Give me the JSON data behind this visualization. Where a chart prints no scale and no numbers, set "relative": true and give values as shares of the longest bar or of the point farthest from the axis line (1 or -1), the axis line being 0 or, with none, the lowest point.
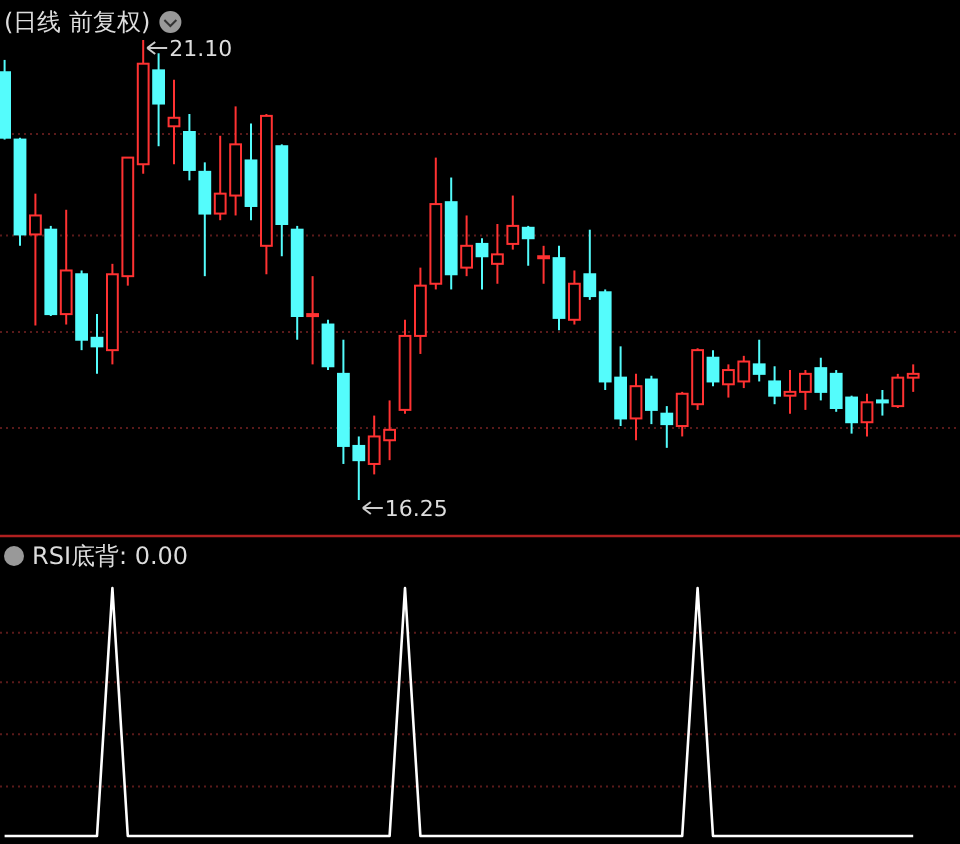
{
  "chart_data": [
    {
      "type": "candlestick",
      "title": "(日线 前复权)",
      "categories": [
        null,
        null,
        null,
        null,
        null,
        null,
        null,
        null,
        null,
        null,
        null,
        null,
        null,
        null,
        null,
        null,
        null,
        null,
        null,
        null,
        null,
        null,
        null,
        null,
        null,
        null,
        null,
        null,
        null,
        null,
        null,
        null,
        null,
        null,
        null,
        null,
        null,
        null,
        null,
        null,
        null,
        null,
        null,
        null,
        null,
        null,
        null,
        null,
        null,
        null,
        null,
        null,
        null,
        null,
        null,
        null,
        null,
        null,
        null,
        null
      ],
      "ohlc": [
        [
          20.76,
          20.89,
          20.05,
          20.07
        ],
        [
          20.05,
          20.07,
          18.93,
          19.05
        ],
        [
          19.05,
          19.48,
          18.09,
          19.25
        ],
        [
          19.1,
          19.14,
          18.19,
          18.21
        ],
        [
          18.21,
          19.31,
          18.1,
          18.67
        ],
        [
          18.63,
          18.67,
          17.83,
          17.94
        ],
        [
          17.96,
          18.21,
          17.58,
          17.87
        ],
        [
          17.83,
          18.74,
          17.68,
          18.63
        ],
        [
          18.61,
          19.86,
          18.51,
          19.86
        ],
        [
          19.79,
          21.1,
          19.69,
          20.85
        ],
        [
          20.78,
          20.96,
          19.98,
          20.43
        ],
        [
          20.19,
          20.68,
          19.79,
          20.28
        ],
        [
          20.13,
          20.32,
          19.62,
          19.73
        ],
        [
          19.71,
          19.81,
          18.61,
          19.27
        ],
        [
          19.27,
          20.09,
          19.2,
          19.48
        ],
        [
          19.46,
          20.4,
          19.25,
          20.0
        ],
        [
          19.83,
          20.22,
          19.2,
          19.35
        ],
        [
          18.93,
          20.32,
          18.63,
          20.3
        ],
        [
          19.98,
          20.0,
          18.82,
          19.16
        ],
        [
          19.1,
          19.14,
          17.94,
          18.19
        ],
        [
          18.19,
          18.61,
          17.68,
          18.21
        ],
        [
          18.1,
          18.15,
          17.62,
          17.66
        ],
        [
          17.58,
          17.94,
          16.63,
          16.82
        ],
        [
          16.82,
          16.92,
          16.25,
          16.67
        ],
        [
          16.63,
          17.14,
          16.52,
          16.92
        ],
        [
          16.88,
          17.3,
          16.67,
          16.99
        ],
        [
          17.2,
          18.15,
          17.16,
          17.98
        ],
        [
          17.98,
          18.7,
          17.79,
          18.51
        ],
        [
          18.53,
          19.86,
          18.47,
          19.37
        ],
        [
          19.39,
          19.65,
          18.47,
          18.63
        ],
        [
          18.7,
          19.25,
          18.61,
          18.93
        ],
        [
          18.95,
          19.01,
          18.47,
          18.82
        ],
        [
          18.74,
          19.16,
          18.53,
          18.84
        ],
        [
          18.95,
          19.46,
          18.89,
          19.14
        ],
        [
          19.12,
          19.14,
          18.72,
          19.01
        ],
        [
          18.8,
          18.93,
          18.53,
          18.82
        ],
        [
          18.8,
          18.93,
          18.04,
          18.17
        ],
        [
          18.15,
          18.67,
          18.1,
          18.53
        ],
        [
          18.63,
          19.1,
          18.36,
          18.4
        ],
        [
          18.44,
          18.47,
          17.41,
          17.5
        ],
        [
          17.54,
          17.87,
          17.03,
          17.11
        ],
        [
          17.11,
          17.58,
          16.88,
          17.45
        ],
        [
          17.52,
          17.56,
          17.05,
          17.2
        ],
        [
          17.16,
          17.24,
          16.8,
          17.05
        ],
        [
          17.03,
          17.39,
          16.92,
          17.37
        ],
        [
          17.26,
          17.85,
          17.2,
          17.83
        ],
        [
          17.75,
          17.83,
          17.45,
          17.5
        ],
        [
          17.47,
          17.68,
          17.33,
          17.62
        ],
        [
          17.5,
          17.77,
          17.43,
          17.71
        ],
        [
          17.68,
          17.94,
          17.5,
          17.58
        ],
        [
          17.5,
          17.66,
          17.26,
          17.35
        ],
        [
          17.35,
          17.62,
          17.16,
          17.39
        ],
        [
          17.39,
          17.62,
          17.2,
          17.58
        ],
        [
          17.64,
          17.75,
          17.3,
          17.39
        ],
        [
          17.58,
          17.62,
          17.18,
          17.22
        ],
        [
          17.33,
          17.35,
          16.95,
          17.07
        ],
        [
          17.07,
          17.37,
          16.92,
          17.28
        ],
        [
          17.3,
          17.41,
          17.14,
          17.28
        ],
        [
          17.24,
          17.58,
          17.22,
          17.54
        ],
        [
          17.54,
          17.68,
          17.39,
          17.58
        ]
      ],
      "colors": [
        "#54fcfc",
        "#54fcfc",
        "#ff3232",
        "#54fcfc",
        "#ff3232",
        "#54fcfc",
        "#54fcfc",
        "#ff3232",
        "#ff3232",
        "#ff3232",
        "#54fcfc",
        "#ff3232",
        "#54fcfc",
        "#54fcfc",
        "#ff3232",
        "#ff3232",
        "#54fcfc",
        "#ff3232",
        "#54fcfc",
        "#54fcfc",
        "#ff3232",
        "#54fcfc",
        "#54fcfc",
        "#54fcfc",
        "#ff3232",
        "#ff3232",
        "#ff3232",
        "#ff3232",
        "#ff3232",
        "#54fcfc",
        "#ff3232",
        "#54fcfc",
        "#ff3232",
        "#ff3232",
        "#54fcfc",
        "#ff3232",
        "#54fcfc",
        "#ff3232",
        "#54fcfc",
        "#54fcfc",
        "#54fcfc",
        "#ff3232",
        "#54fcfc",
        "#54fcfc",
        "#ff3232",
        "#ff3232",
        "#54fcfc",
        "#ff3232",
        "#ff3232",
        "#54fcfc",
        "#54fcfc",
        "#ff3232",
        "#ff3232",
        "#54fcfc",
        "#54fcfc",
        "#54fcfc",
        "#ff3232",
        "#54fcfc",
        "#ff3232",
        "#ff3232"
      ],
      "grid": "y",
      "yticks": [
        {
          "value": 20.11,
          "label": null
        },
        {
          "value": 19.04,
          "label": null
        },
        {
          "value": 18.02,
          "label": null
        },
        {
          "value": 17.01,
          "label": null
        }
      ],
      "annotations": [
        "21.10",
        "16.25"
      ]
    },
    {
      "type": "line",
      "title": "RSI底背: 0.00",
      "relative": true,
      "ref_lines": [
        {
          "axis": "y",
          "value": 0.82,
          "color": "#5a1a1a",
          "line_style": "dotted"
        },
        {
          "axis": "y",
          "value": 0.62,
          "color": "#5a1a1a",
          "line_style": "dotted"
        },
        {
          "axis": "y",
          "value": 0.41,
          "color": "#5a1a1a",
          "line_style": "dotted"
        },
        {
          "axis": "y",
          "value": 0.2,
          "color": "#5a1a1a",
          "line_style": "dotted"
        }
      ],
      "categories": [
        null,
        null,
        null,
        null,
        null,
        null,
        null,
        null,
        null,
        null,
        null,
        null,
        null,
        null,
        null,
        null,
        null,
        null,
        null,
        null,
        null,
        null,
        null,
        null,
        null,
        null,
        null,
        null,
        null,
        null,
        null,
        null,
        null,
        null,
        null,
        null,
        null,
        null,
        null,
        null,
        null,
        null,
        null,
        null,
        null,
        null,
        null,
        null,
        null,
        null,
        null,
        null,
        null,
        null,
        null,
        null,
        null,
        null,
        null,
        null
      ],
      "series": [
        {
          "color": "#ffffff",
          "values": [
            0,
            0,
            0,
            0,
            0,
            0,
            0,
            1,
            0,
            0,
            0,
            0,
            0,
            0,
            0,
            0,
            0,
            0,
            0,
            0,
            0,
            0,
            0,
            0,
            0,
            0,
            1,
            0,
            0,
            0,
            0,
            0,
            0,
            0,
            0,
            0,
            0,
            0,
            0,
            0,
            0,
            0,
            0,
            0,
            0,
            1,
            0,
            0,
            0,
            0,
            0,
            0,
            0,
            0,
            0,
            0,
            0,
            0,
            0,
            0
          ]
        }
      ]
    }
  ]
}
